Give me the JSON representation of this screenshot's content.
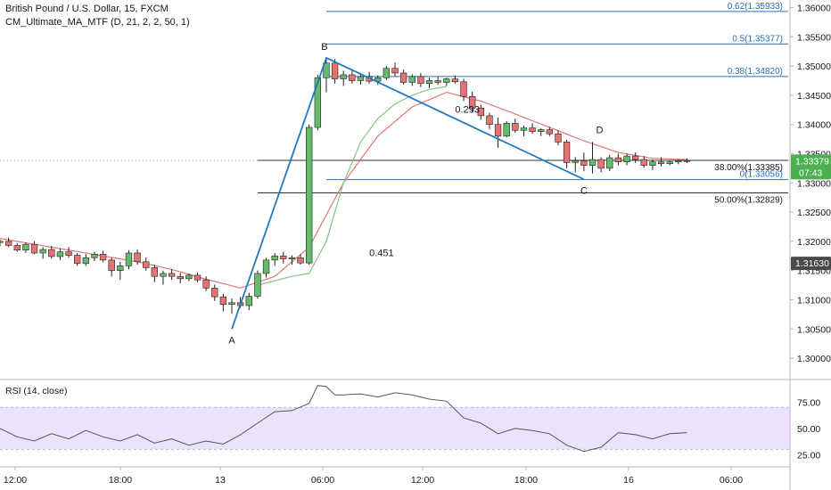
{
  "header": {
    "symbol": "British Pound / U.S. Dollar, 15, FXCM",
    "indicator": "CM_Ultimate_MA_MTF (D, 21, 2, 2, 50, 1)"
  },
  "colors": {
    "up": "#26a69a",
    "down": "#ef5350",
    "ma_red": "#e57373",
    "ma_green": "#81c784",
    "pattern": "#1f7ac1",
    "fib": "#2a6fb5",
    "price_tag_green": "#4caf50",
    "price_tag_dark": "#4a4a4a",
    "rsi_band": "#ede2fb",
    "rsi_line": "#555555"
  },
  "chart_data": {
    "type": "candlestick",
    "title": "British Pound / U.S. Dollar, 15, FXCM",
    "x_ticks": [
      "12:00",
      "18:00",
      "13",
      "06:00",
      "12:00",
      "18:00",
      "16",
      "06:00"
    ],
    "y_ticks": [
      "1.36000",
      "1.35500",
      "1.35000",
      "1.34500",
      "1.34000",
      "1.33500",
      "1.33000",
      "1.32500",
      "1.32000",
      "1.31500",
      "1.31000",
      "1.30500",
      "1.30000"
    ],
    "ylim": [
      1.2965,
      1.3613
    ],
    "xlim_hours": [
      -2,
      44
    ],
    "candles": [
      [
        -2.0,
        1.3198,
        1.3203,
        1.3192,
        1.32
      ],
      [
        -1.5,
        1.32,
        1.3206,
        1.319,
        1.3193
      ],
      [
        -1.0,
        1.3193,
        1.3197,
        1.3182,
        1.3185
      ],
      [
        -0.5,
        1.3185,
        1.3198,
        1.318,
        1.3195
      ],
      [
        0.0,
        1.3195,
        1.32,
        1.3178,
        1.318
      ],
      [
        0.5,
        1.318,
        1.319,
        1.317,
        1.3186
      ],
      [
        1.0,
        1.3186,
        1.3192,
        1.317,
        1.3174
      ],
      [
        1.5,
        1.3174,
        1.3188,
        1.3168,
        1.3182
      ],
      [
        2.0,
        1.3182,
        1.319,
        1.3172,
        1.3176
      ],
      [
        2.5,
        1.3176,
        1.318,
        1.3158,
        1.3162
      ],
      [
        3.0,
        1.3162,
        1.3178,
        1.3158,
        1.3172
      ],
      [
        3.5,
        1.3172,
        1.3182,
        1.3166,
        1.3178
      ],
      [
        4.0,
        1.3178,
        1.3184,
        1.3164,
        1.3168
      ],
      [
        4.5,
        1.3168,
        1.3172,
        1.314,
        1.315
      ],
      [
        5.0,
        1.315,
        1.3165,
        1.3134,
        1.3158
      ],
      [
        5.5,
        1.3158,
        1.3185,
        1.3152,
        1.318
      ],
      [
        6.0,
        1.318,
        1.3186,
        1.316,
        1.3165
      ],
      [
        6.5,
        1.3165,
        1.3172,
        1.315,
        1.3155
      ],
      [
        7.0,
        1.3155,
        1.316,
        1.313,
        1.314
      ],
      [
        7.5,
        1.314,
        1.315,
        1.3126,
        1.3145
      ],
      [
        8.0,
        1.3145,
        1.3152,
        1.3134,
        1.314
      ],
      [
        8.5,
        1.314,
        1.3146,
        1.3128,
        1.3136
      ],
      [
        9.0,
        1.3136,
        1.3145,
        1.3132,
        1.3142
      ],
      [
        9.5,
        1.3142,
        1.3146,
        1.313,
        1.3134
      ],
      [
        10.0,
        1.3134,
        1.314,
        1.3115,
        1.312
      ],
      [
        10.5,
        1.312,
        1.3126,
        1.3098,
        1.3105
      ],
      [
        11.0,
        1.3105,
        1.311,
        1.308,
        1.3092
      ],
      [
        11.5,
        1.3092,
        1.3102,
        1.3076,
        1.3095
      ],
      [
        12.0,
        1.3095,
        1.3105,
        1.3086,
        1.309
      ],
      [
        12.5,
        1.309,
        1.3112,
        1.3082,
        1.3106
      ],
      [
        13.0,
        1.3106,
        1.315,
        1.3102,
        1.3145
      ],
      [
        13.5,
        1.3145,
        1.3172,
        1.3138,
        1.3168
      ],
      [
        14.0,
        1.3168,
        1.318,
        1.3158,
        1.3175
      ],
      [
        14.5,
        1.3175,
        1.3182,
        1.3162,
        1.317
      ],
      [
        15.0,
        1.317,
        1.3176,
        1.316,
        1.3172
      ],
      [
        15.5,
        1.3172,
        1.3178,
        1.316,
        1.3163
      ],
      [
        16.0,
        1.3163,
        1.34,
        1.316,
        1.3395
      ],
      [
        16.5,
        1.3395,
        1.3485,
        1.339,
        1.348
      ],
      [
        17.0,
        1.348,
        1.3514,
        1.3455,
        1.3505
      ],
      [
        17.5,
        1.3505,
        1.3512,
        1.347,
        1.3478
      ],
      [
        18.0,
        1.3478,
        1.3492,
        1.3466,
        1.3485
      ],
      [
        18.5,
        1.3485,
        1.3492,
        1.347,
        1.3475
      ],
      [
        19.0,
        1.3475,
        1.3488,
        1.3468,
        1.3482
      ],
      [
        19.5,
        1.3482,
        1.349,
        1.347,
        1.3474
      ],
      [
        20.0,
        1.3474,
        1.3484,
        1.3468,
        1.348
      ],
      [
        20.5,
        1.348,
        1.35,
        1.3476,
        1.3496
      ],
      [
        21.0,
        1.3496,
        1.3506,
        1.3482,
        1.3488
      ],
      [
        21.5,
        1.3488,
        1.3494,
        1.3468,
        1.3472
      ],
      [
        22.0,
        1.3472,
        1.3486,
        1.3466,
        1.3482
      ],
      [
        22.5,
        1.3482,
        1.3488,
        1.3464,
        1.347
      ],
      [
        23.0,
        1.347,
        1.348,
        1.3462,
        1.3475
      ],
      [
        23.5,
        1.3475,
        1.3482,
        1.3468,
        1.3472
      ],
      [
        24.0,
        1.3472,
        1.348,
        1.3466,
        1.3478
      ],
      [
        24.5,
        1.3478,
        1.3484,
        1.347,
        1.3473
      ],
      [
        25.0,
        1.3473,
        1.3478,
        1.344,
        1.3448
      ],
      [
        25.5,
        1.3448,
        1.3456,
        1.342,
        1.3428
      ],
      [
        26.0,
        1.3428,
        1.3434,
        1.3408,
        1.3415
      ],
      [
        26.5,
        1.3415,
        1.342,
        1.3392,
        1.34
      ],
      [
        27.0,
        1.34,
        1.3412,
        1.336,
        1.338
      ],
      [
        27.5,
        1.338,
        1.3406,
        1.3378,
        1.3402
      ],
      [
        28.0,
        1.3402,
        1.341,
        1.3386,
        1.339
      ],
      [
        28.5,
        1.339,
        1.3398,
        1.338,
        1.3394
      ],
      [
        29.0,
        1.3394,
        1.3402,
        1.3384,
        1.3388
      ],
      [
        29.5,
        1.3388,
        1.3394,
        1.338,
        1.3391
      ],
      [
        30.0,
        1.3391,
        1.3396,
        1.338,
        1.3384
      ],
      [
        30.5,
        1.3384,
        1.339,
        1.3364,
        1.337
      ],
      [
        31.0,
        1.337,
        1.3374,
        1.3325,
        1.3335
      ],
      [
        31.5,
        1.3335,
        1.3344,
        1.3318,
        1.3338
      ],
      [
        32.0,
        1.3338,
        1.3352,
        1.332,
        1.333
      ],
      [
        32.5,
        1.333,
        1.337,
        1.3316,
        1.334
      ],
      [
        33.0,
        1.334,
        1.3344,
        1.3318,
        1.3325
      ],
      [
        33.5,
        1.3325,
        1.3348,
        1.332,
        1.3343
      ],
      [
        34.0,
        1.3343,
        1.335,
        1.333,
        1.3336
      ],
      [
        34.5,
        1.3336,
        1.335,
        1.333,
        1.3346
      ],
      [
        35.0,
        1.3346,
        1.3352,
        1.3334,
        1.334
      ],
      [
        35.5,
        1.334,
        1.3346,
        1.3326,
        1.333
      ],
      [
        36.0,
        1.333,
        1.334,
        1.3322,
        1.3336
      ],
      [
        36.5,
        1.3336,
        1.3344,
        1.3328,
        1.3333
      ],
      [
        37.0,
        1.3333,
        1.3338,
        1.333,
        1.3336
      ],
      [
        37.5,
        1.3336,
        1.334,
        1.3332,
        1.3338
      ],
      [
        38.0,
        1.3338,
        1.3342,
        1.3334,
        1.3337
      ]
    ],
    "ma_red": [
      [
        -2,
        1.3205
      ],
      [
        0,
        1.3195
      ],
      [
        2,
        1.3185
      ],
      [
        4,
        1.3175
      ],
      [
        6,
        1.3165
      ],
      [
        8,
        1.3152
      ],
      [
        10,
        1.3135
      ],
      [
        12,
        1.312
      ],
      [
        14,
        1.314
      ],
      [
        16,
        1.319
      ],
      [
        18,
        1.33
      ],
      [
        20,
        1.338
      ],
      [
        22,
        1.343
      ],
      [
        24,
        1.3455
      ],
      [
        26,
        1.344
      ],
      [
        28,
        1.3418
      ],
      [
        30,
        1.3395
      ],
      [
        32,
        1.3372
      ],
      [
        34,
        1.3352
      ],
      [
        36,
        1.3342
      ],
      [
        38,
        1.334
      ]
    ],
    "ma_green": [
      [
        13,
        1.3125
      ],
      [
        15,
        1.314
      ],
      [
        16,
        1.3145
      ],
      [
        17,
        1.32
      ],
      [
        18,
        1.33
      ],
      [
        19,
        1.337
      ],
      [
        20,
        1.341
      ],
      [
        21,
        1.3435
      ],
      [
        22,
        1.345
      ],
      [
        23,
        1.346
      ],
      [
        24,
        1.3465
      ]
    ],
    "pattern": {
      "A": [
        11.5,
        1.305
      ],
      "B": [
        17.0,
        1.3514
      ],
      "C": [
        32.0,
        1.3306
      ],
      "D": [
        32.5,
        1.337
      ],
      "ab_label": "0.451",
      "bc_label": "0.293",
      "point_labels": [
        "A",
        "B",
        "C",
        "D"
      ]
    },
    "fib_levels": [
      {
        "price": 1.35933,
        "label": "0.62(1.35933)"
      },
      {
        "price": 1.35377,
        "label": "0.5(1.35377)"
      },
      {
        "price": 1.3482,
        "label": "0.38(1.34820)"
      },
      {
        "price": 1.33056,
        "label": "0(1.33056)"
      }
    ],
    "retrace_levels": [
      {
        "price": 1.33385,
        "label": "38.00%(1.33385)"
      },
      {
        "price": 1.32829,
        "label": "50.00%(1.32829)"
      }
    ],
    "price_tags": [
      {
        "price": 1.33379,
        "label": "1.33379",
        "sub": "07:43",
        "kind": "green"
      },
      {
        "price": 1.3163,
        "label": "1.31630",
        "kind": "dark"
      }
    ],
    "rsi": {
      "label": "RSI (14, close)",
      "ticks": [
        "75.00",
        "50.00",
        "25.00"
      ],
      "ylim": [
        15,
        95
      ],
      "band": [
        30,
        70
      ],
      "values": [
        [
          -2,
          50
        ],
        [
          -1,
          42
        ],
        [
          0,
          38
        ],
        [
          1,
          45
        ],
        [
          2,
          40
        ],
        [
          3,
          48
        ],
        [
          4,
          42
        ],
        [
          5,
          38
        ],
        [
          6,
          44
        ],
        [
          7,
          36
        ],
        [
          8,
          40
        ],
        [
          9,
          34
        ],
        [
          10,
          38
        ],
        [
          11,
          35
        ],
        [
          12,
          44
        ],
        [
          13,
          55
        ],
        [
          14,
          66
        ],
        [
          15,
          67
        ],
        [
          16,
          74
        ],
        [
          16.5,
          91
        ],
        [
          17,
          90
        ],
        [
          17.5,
          82
        ],
        [
          18,
          82
        ],
        [
          19,
          83
        ],
        [
          20,
          80
        ],
        [
          21,
          84
        ],
        [
          22,
          82
        ],
        [
          23,
          78
        ],
        [
          24,
          76
        ],
        [
          25,
          60
        ],
        [
          26,
          55
        ],
        [
          27,
          45
        ],
        [
          28,
          50
        ],
        [
          29,
          48
        ],
        [
          30,
          45
        ],
        [
          31,
          34
        ],
        [
          32,
          28
        ],
        [
          33,
          32
        ],
        [
          34,
          46
        ],
        [
          35,
          44
        ],
        [
          36,
          40
        ],
        [
          37,
          45
        ],
        [
          38,
          46
        ]
      ]
    }
  }
}
